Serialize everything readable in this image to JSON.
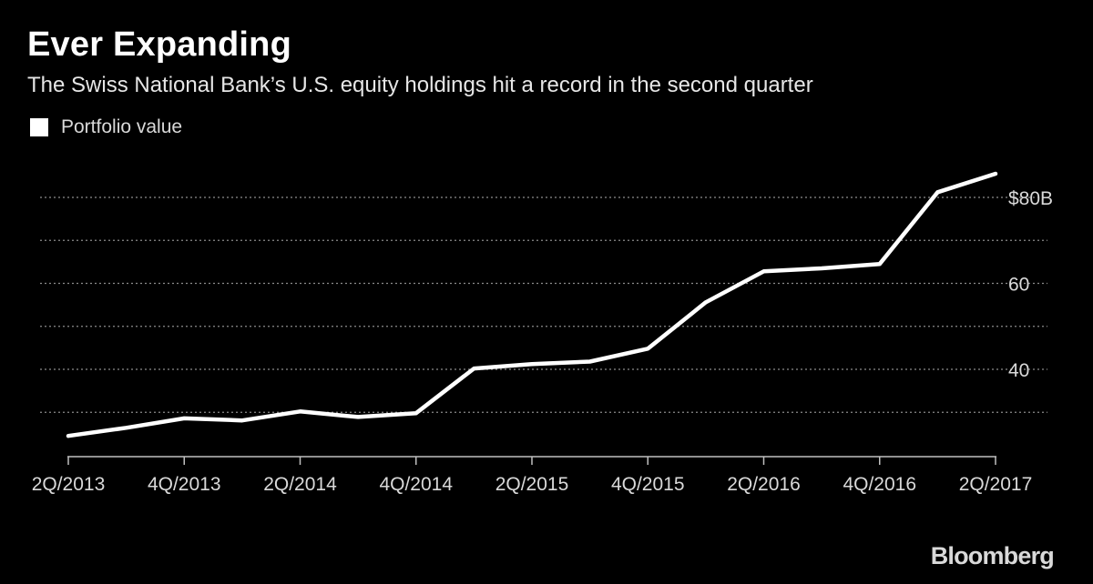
{
  "chart_data": {
    "type": "line",
    "title": "Ever Expanding",
    "subtitle": "The Swiss National Bank’s U.S. equity holdings hit a record in the second quarter",
    "x": [
      "2Q/2013",
      "3Q/2013",
      "4Q/2013",
      "1Q/2014",
      "2Q/2014",
      "3Q/2014",
      "4Q/2014",
      "1Q/2015",
      "2Q/2015",
      "3Q/2015",
      "4Q/2015",
      "1Q/2016",
      "2Q/2016",
      "3Q/2016",
      "4Q/2016",
      "1Q/2017",
      "2Q/2017"
    ],
    "x_tick_labels": [
      "2Q/2013",
      "4Q/2013",
      "2Q/2014",
      "4Q/2014",
      "2Q/2015",
      "4Q/2015",
      "2Q/2016",
      "4Q/2016",
      "2Q/2017"
    ],
    "series": [
      {
        "name": "Portfolio value",
        "color": "#ffffff",
        "values": [
          24.5,
          26.4,
          28.6,
          28.1,
          30.2,
          28.9,
          29.8,
          40.2,
          41.2,
          41.8,
          44.8,
          55.6,
          62.8,
          63.5,
          64.5,
          81.2,
          85.5
        ]
      }
    ],
    "y_tick_labels": [
      {
        "value": 80,
        "label": "$80B"
      },
      {
        "value": 60,
        "label": "60"
      },
      {
        "value": 40,
        "label": "40"
      }
    ],
    "gridlines": [
      30,
      40,
      50,
      60,
      70,
      80
    ],
    "ylim": [
      20,
      90
    ],
    "grid": true,
    "legend_position": "top-left",
    "source": "Bloomberg"
  }
}
